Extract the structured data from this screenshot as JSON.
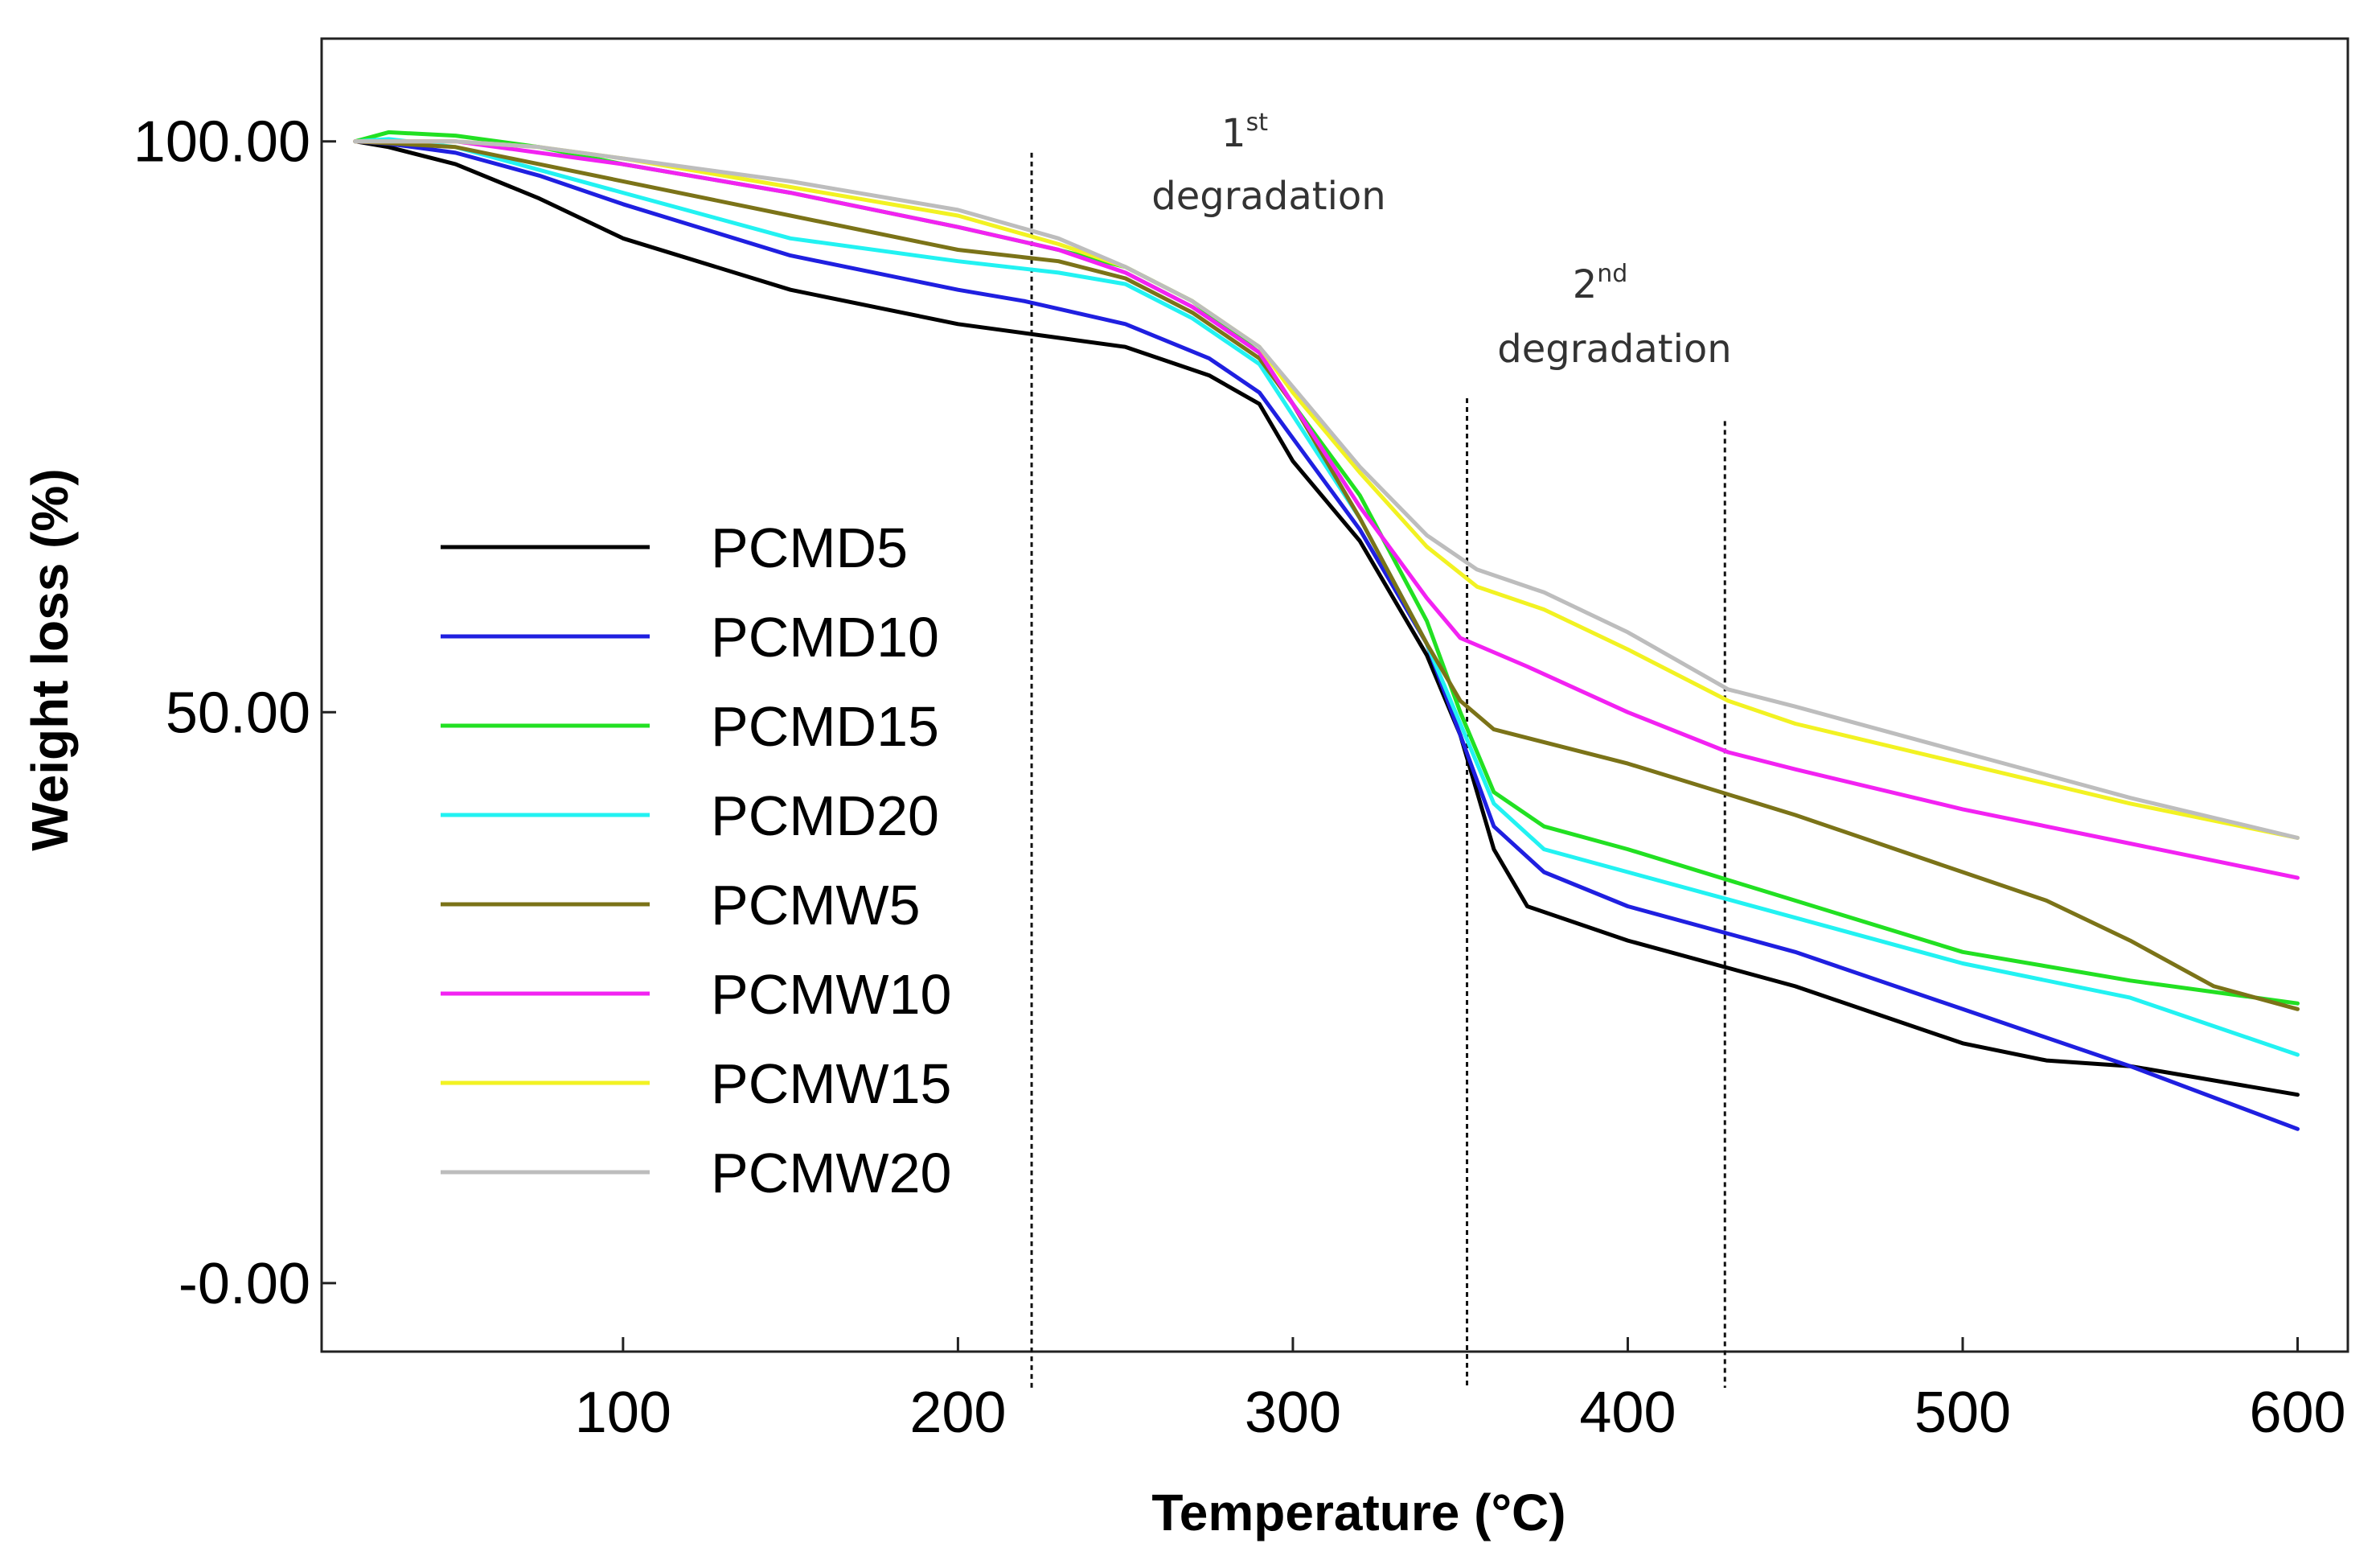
{
  "chart_data": {
    "type": "line",
    "title": "",
    "xlabel": "Temperature (°C)",
    "ylabel": "Weight loss (%)",
    "xlim": [
      10,
      615
    ],
    "ylim": [
      -6,
      109
    ],
    "x_ticks": [
      100,
      200,
      300,
      400,
      500,
      600
    ],
    "x_tick_labels": [
      "100",
      "200",
      "300",
      "400",
      "500",
      "600"
    ],
    "y_ticks": [
      0,
      50,
      100
    ],
    "y_tick_labels": [
      "-0.00",
      "50.00",
      "100.00"
    ],
    "grid": false,
    "legend_position": "center-left",
    "colors": {
      "PCMD5": "#000000",
      "PCMD10": "#1f1fe0",
      "PCMD15": "#22e022",
      "PCMD20": "#22f2f2",
      "PCMW5": "#7b7318",
      "PCMW10": "#f222f2",
      "PCMW15": "#f2f222",
      "PCMW20": "#bdbdbd"
    },
    "series": [
      {
        "name": "PCMD5",
        "points": [
          [
            20,
            100
          ],
          [
            30,
            99.5
          ],
          [
            50,
            98
          ],
          [
            75,
            95
          ],
          [
            100,
            91.5
          ],
          [
            150,
            87
          ],
          [
            200,
            84
          ],
          [
            225,
            83
          ],
          [
            250,
            82
          ],
          [
            275,
            79.5
          ],
          [
            290,
            77
          ],
          [
            300,
            72
          ],
          [
            320,
            65
          ],
          [
            340,
            55
          ],
          [
            350,
            48
          ],
          [
            360,
            38
          ],
          [
            370,
            33
          ],
          [
            400,
            30
          ],
          [
            450,
            26
          ],
          [
            500,
            21
          ],
          [
            525,
            19.5
          ],
          [
            550,
            19
          ],
          [
            600,
            16.5
          ]
        ]
      },
      {
        "name": "PCMD10",
        "points": [
          [
            20,
            100
          ],
          [
            30,
            99.8
          ],
          [
            50,
            99
          ],
          [
            75,
            97
          ],
          [
            100,
            94.5
          ],
          [
            150,
            90
          ],
          [
            200,
            87
          ],
          [
            220,
            86
          ],
          [
            250,
            84
          ],
          [
            275,
            81
          ],
          [
            290,
            78
          ],
          [
            300,
            74
          ],
          [
            320,
            66
          ],
          [
            340,
            56
          ],
          [
            350,
            48
          ],
          [
            360,
            40
          ],
          [
            375,
            36
          ],
          [
            400,
            33
          ],
          [
            450,
            29
          ],
          [
            500,
            24
          ],
          [
            550,
            19
          ],
          [
            600,
            13.5
          ]
        ]
      },
      {
        "name": "PCMD15",
        "points": [
          [
            20,
            100
          ],
          [
            30,
            100.8
          ],
          [
            50,
            100.5
          ],
          [
            75,
            99.5
          ],
          [
            100,
            98
          ],
          [
            150,
            95.5
          ],
          [
            200,
            92.5
          ],
          [
            230,
            90.5
          ],
          [
            250,
            89
          ],
          [
            270,
            86
          ],
          [
            290,
            81.5
          ],
          [
            300,
            77
          ],
          [
            320,
            69
          ],
          [
            340,
            58
          ],
          [
            350,
            50
          ],
          [
            360,
            43
          ],
          [
            375,
            40
          ],
          [
            400,
            38
          ],
          [
            450,
            33.5
          ],
          [
            500,
            29
          ],
          [
            550,
            26.5
          ],
          [
            600,
            24.5
          ]
        ]
      },
      {
        "name": "PCMD20",
        "points": [
          [
            20,
            100
          ],
          [
            30,
            100.2
          ],
          [
            50,
            99.5
          ],
          [
            75,
            97.5
          ],
          [
            100,
            95.5
          ],
          [
            150,
            91.5
          ],
          [
            200,
            89.5
          ],
          [
            230,
            88.5
          ],
          [
            250,
            87.5
          ],
          [
            270,
            84.5
          ],
          [
            290,
            80.5
          ],
          [
            300,
            76
          ],
          [
            320,
            67
          ],
          [
            340,
            56
          ],
          [
            350,
            49
          ],
          [
            360,
            42
          ],
          [
            375,
            38
          ],
          [
            400,
            36
          ],
          [
            450,
            32
          ],
          [
            500,
            28
          ],
          [
            550,
            25
          ],
          [
            600,
            20
          ]
        ]
      },
      {
        "name": "PCMW5",
        "points": [
          [
            20,
            100
          ],
          [
            50,
            99.5
          ],
          [
            75,
            98
          ],
          [
            100,
            96.5
          ],
          [
            150,
            93.5
          ],
          [
            200,
            90.5
          ],
          [
            230,
            89.5
          ],
          [
            250,
            88
          ],
          [
            270,
            85
          ],
          [
            290,
            81
          ],
          [
            300,
            77
          ],
          [
            320,
            67
          ],
          [
            340,
            56
          ],
          [
            350,
            51
          ],
          [
            360,
            48.5
          ],
          [
            400,
            45.5
          ],
          [
            450,
            41
          ],
          [
            500,
            36
          ],
          [
            525,
            33.5
          ],
          [
            550,
            30
          ],
          [
            575,
            26
          ],
          [
            600,
            24
          ]
        ]
      },
      {
        "name": "PCMW10",
        "points": [
          [
            20,
            100
          ],
          [
            50,
            100
          ],
          [
            75,
            99
          ],
          [
            100,
            98
          ],
          [
            150,
            95.5
          ],
          [
            200,
            92.5
          ],
          [
            230,
            90.5
          ],
          [
            250,
            88.5
          ],
          [
            270,
            85.5
          ],
          [
            290,
            81.5
          ],
          [
            300,
            77
          ],
          [
            320,
            68
          ],
          [
            340,
            60
          ],
          [
            350,
            56.5
          ],
          [
            370,
            54
          ],
          [
            400,
            50
          ],
          [
            430,
            46.5
          ],
          [
            450,
            45
          ],
          [
            500,
            41.5
          ],
          [
            550,
            38.5
          ],
          [
            600,
            35.5
          ]
        ]
      },
      {
        "name": "PCMW15",
        "points": [
          [
            20,
            100
          ],
          [
            50,
            100
          ],
          [
            75,
            99.5
          ],
          [
            100,
            98.5
          ],
          [
            150,
            96
          ],
          [
            200,
            93.5
          ],
          [
            230,
            91
          ],
          [
            250,
            89
          ],
          [
            270,
            86
          ],
          [
            290,
            82
          ],
          [
            300,
            78
          ],
          [
            320,
            71
          ],
          [
            340,
            64.5
          ],
          [
            355,
            61
          ],
          [
            375,
            59
          ],
          [
            400,
            55.5
          ],
          [
            430,
            51
          ],
          [
            450,
            49
          ],
          [
            500,
            45.5
          ],
          [
            550,
            42
          ],
          [
            600,
            39
          ]
        ]
      },
      {
        "name": "PCMW20",
        "points": [
          [
            20,
            100
          ],
          [
            50,
            100
          ],
          [
            75,
            99.5
          ],
          [
            100,
            98.5
          ],
          [
            150,
            96.5
          ],
          [
            200,
            94
          ],
          [
            230,
            91.5
          ],
          [
            250,
            89
          ],
          [
            270,
            86
          ],
          [
            290,
            82
          ],
          [
            300,
            78.5
          ],
          [
            320,
            71.5
          ],
          [
            340,
            65.5
          ],
          [
            355,
            62.5
          ],
          [
            375,
            60.5
          ],
          [
            400,
            57
          ],
          [
            430,
            52
          ],
          [
            450,
            50.5
          ],
          [
            500,
            46.5
          ],
          [
            550,
            42.5
          ],
          [
            600,
            39
          ]
        ]
      }
    ],
    "vlines": [
      222,
      352,
      429
    ],
    "annotations": [
      {
        "number": "1",
        "suffix": "st",
        "text": "degradation"
      },
      {
        "number": "2",
        "suffix": "nd",
        "text": "degradation"
      }
    ]
  }
}
